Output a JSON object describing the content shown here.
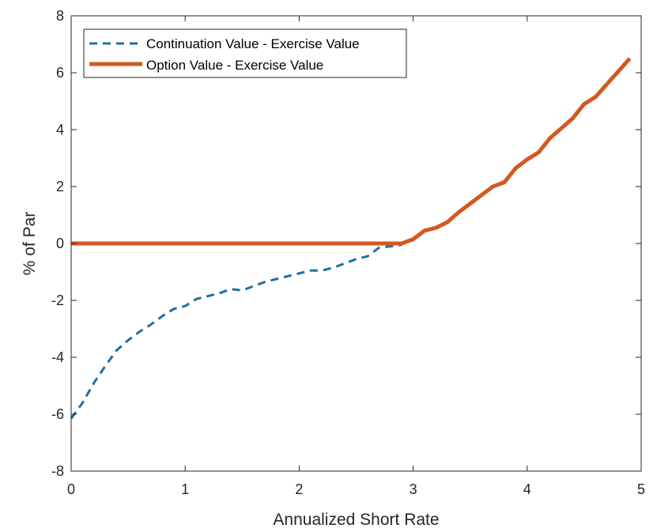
{
  "chart_data": {
    "type": "line",
    "xlabel": "Annualized Short Rate",
    "ylabel": "% of Par",
    "xlim": [
      0,
      5
    ],
    "ylim": [
      -8,
      8
    ],
    "xticks": [
      "0",
      "1",
      "2",
      "3",
      "4",
      "5"
    ],
    "yticks": [
      "8",
      "6",
      "4",
      "2",
      "0",
      "-2",
      "-4",
      "-6",
      "-8"
    ],
    "grid": false,
    "legend_position": "top-left",
    "series": [
      {
        "name": "Continuation Value - Exercise Value",
        "style": "dashed",
        "color": "#1f6fa5",
        "x": [
          0,
          0.1,
          0.2,
          0.3,
          0.4,
          0.5,
          0.6,
          0.7,
          0.8,
          0.9,
          1.0,
          1.1,
          1.2,
          1.3,
          1.4,
          1.5,
          1.6,
          1.7,
          1.8,
          1.9,
          2.0,
          2.1,
          2.2,
          2.3,
          2.4,
          2.5,
          2.6,
          2.7,
          2.8,
          2.9
        ],
        "y": [
          -6.15,
          -5.6,
          -4.9,
          -4.3,
          -3.75,
          -3.4,
          -3.1,
          -2.85,
          -2.55,
          -2.3,
          -2.2,
          -1.95,
          -1.85,
          -1.75,
          -1.6,
          -1.65,
          -1.5,
          -1.35,
          -1.25,
          -1.15,
          -1.05,
          -0.95,
          -0.95,
          -0.85,
          -0.7,
          -0.55,
          -0.45,
          -0.15,
          -0.1,
          -0.05
        ]
      },
      {
        "name": "Option Value - Exercise Value",
        "style": "solid",
        "color": "#d4581f",
        "x": [
          0,
          0.5,
          1.0,
          1.5,
          2.0,
          2.5,
          2.9,
          3.0,
          3.1,
          3.2,
          3.3,
          3.4,
          3.5,
          3.6,
          3.7,
          3.8,
          3.9,
          4.0,
          4.1,
          4.2,
          4.3,
          4.4,
          4.5,
          4.6,
          4.7,
          4.8,
          4.9
        ],
        "y": [
          0,
          0,
          0,
          0,
          0,
          0,
          0,
          0.15,
          0.45,
          0.55,
          0.75,
          1.1,
          1.4,
          1.7,
          2.0,
          2.15,
          2.65,
          2.95,
          3.2,
          3.7,
          4.05,
          4.4,
          4.9,
          5.15,
          5.6,
          6.05,
          6.5
        ]
      }
    ]
  }
}
